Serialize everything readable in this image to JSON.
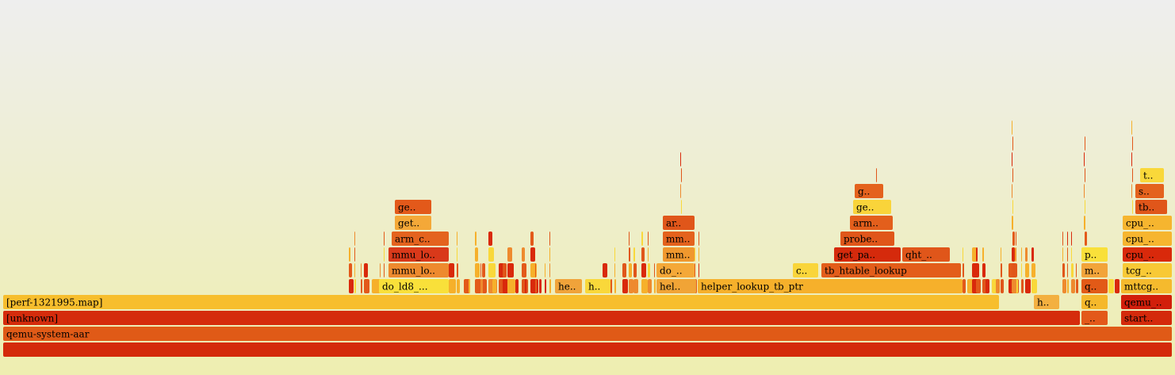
{
  "frames": [
    {
      "label": "qemu-system-aar",
      "color": "#e05a17"
    },
    {
      "label": "[unknown]",
      "color": "#d52c0c"
    },
    {
      "label": "_..",
      "color": "#e3591a"
    },
    {
      "label": "start..",
      "color": "#d42a0b"
    },
    {
      "label": "[perf-1321995.map]",
      "color": "#f7be2d"
    },
    {
      "label": "h..",
      "color": "#f3b040"
    },
    {
      "label": "q..",
      "color": "#f5b82b"
    },
    {
      "label": "qemu_..",
      "color": "#d21f0b"
    },
    {
      "label": "do_ld8_...",
      "color": "#f9e03a"
    },
    {
      "label": "he..",
      "color": "#f0a33a"
    },
    {
      "label": "h..",
      "color": "#f9d83a"
    },
    {
      "label": "hel..",
      "color": "#f1a436"
    },
    {
      "label": "helper_lookup_tb_ptr",
      "color": "#f6b02b"
    },
    {
      "label": "q..",
      "color": "#e25a17"
    },
    {
      "label": "mttcg..",
      "color": "#f5ba2d"
    },
    {
      "label": "mmu_lo..",
      "color": "#ee8a2e"
    },
    {
      "label": "do_..",
      "color": "#f4a838"
    },
    {
      "label": "c..",
      "color": "#f9d53a"
    },
    {
      "label": "tb_htable_lookup",
      "color": "#e35d1a"
    },
    {
      "label": "m..",
      "color": "#f2a43a"
    },
    {
      "label": "tcg_..",
      "color": "#f8c935"
    },
    {
      "label": "mmu_lo..",
      "color": "#d9391a"
    },
    {
      "label": "mm..",
      "color": "#f0982e"
    },
    {
      "label": "get_pa..",
      "color": "#d52a0c"
    },
    {
      "label": "qht_..",
      "color": "#e0561a"
    },
    {
      "label": "p..",
      "color": "#f9e03a"
    },
    {
      "label": "cpu_..",
      "color": "#d9290b"
    },
    {
      "label": "arm_c..",
      "color": "#e4631e"
    },
    {
      "label": "mm..",
      "color": "#e4621d"
    },
    {
      "label": "probe..",
      "color": "#e0561a"
    },
    {
      "label": "cpu_..",
      "color": "#f6b52f"
    },
    {
      "label": "get..",
      "color": "#f4a838"
    },
    {
      "label": "ar..",
      "color": "#e0561a"
    },
    {
      "label": "arm..",
      "color": "#e35f1c"
    },
    {
      "label": "cpu_..",
      "color": "#f6b52f"
    },
    {
      "label": "ge..",
      "color": "#e3591a"
    },
    {
      "label": "ge..",
      "color": "#f9d43a"
    },
    {
      "label": "tb..",
      "color": "#e0561a"
    },
    {
      "label": "g..",
      "color": "#e4621d"
    },
    {
      "label": "s..",
      "color": "#e4621d"
    },
    {
      "label": "t..",
      "color": "#f9d83a"
    }
  ]
}
